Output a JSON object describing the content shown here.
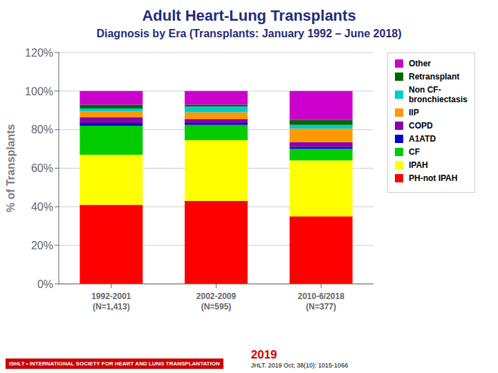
{
  "chart_data": {
    "type": "bar",
    "stacked": true,
    "title": "Adult Heart-Lung Transplants",
    "subtitle": "Diagnosis by Era (Transplants: January 1992 – June 2018)",
    "categories": [
      "1992-2001\n(N=1,413)",
      "2002-2009\n(N=595)",
      "2010-6/2018\n(N=377)"
    ],
    "series": [
      {
        "name": "PH-not IPAH",
        "color": "#FF0000",
        "values": [
          41.0,
          43.0,
          35.0
        ]
      },
      {
        "name": "IPAH",
        "color": "#FFFF00",
        "values": [
          26.0,
          31.5,
          29.0
        ]
      },
      {
        "name": "CF",
        "color": "#00CC00",
        "values": [
          15.0,
          8.0,
          6.0
        ]
      },
      {
        "name": "A1ATD",
        "color": "#0000CC",
        "values": [
          1.5,
          1.0,
          1.0
        ]
      },
      {
        "name": "COPD",
        "color": "#8800AA",
        "values": [
          3.0,
          2.0,
          2.5
        ]
      },
      {
        "name": "IIP",
        "color": "#FF9900",
        "values": [
          3.0,
          3.5,
          7.0
        ]
      },
      {
        "name": "Non CF-\nbronchiectasis",
        "color": "#00CCCC",
        "values": [
          1.5,
          3.0,
          2.0
        ]
      },
      {
        "name": "Retransplant",
        "color": "#006600",
        "values": [
          2.0,
          1.0,
          2.5
        ]
      },
      {
        "name": "Other",
        "color": "#CC00CC",
        "values": [
          7.0,
          7.0,
          15.0
        ]
      }
    ],
    "ylabel": "% of Transplants",
    "ylim": [
      0,
      120
    ],
    "yticks": [
      {
        "value": 0,
        "label": "0%"
      },
      {
        "value": 20,
        "label": "20%"
      },
      {
        "value": 40,
        "label": "40%"
      },
      {
        "value": 60,
        "label": "60%"
      },
      {
        "value": 80,
        "label": "80%"
      },
      {
        "value": 100,
        "label": "100%"
      },
      {
        "value": 120,
        "label": "120%"
      }
    ],
    "grid": true,
    "legend": "right",
    "annotations": [
      "ISHLT • INTERNATIONAL SOCIETY FOR HEART AND LUNG TRANSPLANTATION",
      "2019",
      "JHLT. 2019 Oct; 38(10): 1015-1066"
    ]
  }
}
